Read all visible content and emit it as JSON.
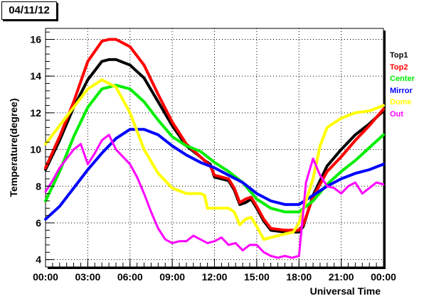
{
  "header": {
    "date_label": "04/11/12"
  },
  "chart_data": {
    "type": "line",
    "title": "04/11/12",
    "xlabel": "Universal Time",
    "ylabel": "Temperature(degree)",
    "xlim": [
      0,
      24
    ],
    "ylim": [
      3.6,
      16.6
    ],
    "x_ticks": [
      {
        "value": 0,
        "label": "00:00"
      },
      {
        "value": 3,
        "label": "03:00"
      },
      {
        "value": 6,
        "label": "06:00"
      },
      {
        "value": 9,
        "label": "09:00"
      },
      {
        "value": 12,
        "label": "12:00"
      },
      {
        "value": 15,
        "label": "15:00"
      },
      {
        "value": 18,
        "label": "18:00"
      },
      {
        "value": 21,
        "label": "21:00"
      },
      {
        "value": 24,
        "label": "00:00"
      }
    ],
    "y_ticks": [
      {
        "value": 4,
        "label": "4"
      },
      {
        "value": 6,
        "label": "6"
      },
      {
        "value": 8,
        "label": "8"
      },
      {
        "value": 10,
        "label": "10"
      },
      {
        "value": 12,
        "label": "12"
      },
      {
        "value": 14,
        "label": "14"
      },
      {
        "value": 16,
        "label": "16"
      }
    ],
    "grid": true,
    "legend_position": "right",
    "series": [
      {
        "name": "Top1",
        "color": "#000000",
        "x": [
          0,
          1,
          2,
          3,
          4,
          4.5,
          5,
          6,
          7,
          8,
          9,
          10,
          11,
          11.3,
          11.7,
          12,
          13,
          13.4,
          13.8,
          14.2,
          14.6,
          15,
          15.5,
          16,
          17,
          18,
          18.3,
          19,
          20,
          21,
          22,
          23,
          24
        ],
        "y": [
          8.9,
          10.5,
          12.3,
          13.8,
          14.8,
          14.9,
          14.9,
          14.6,
          13.9,
          12.6,
          11.3,
          10.2,
          9.6,
          9.4,
          9.2,
          8.5,
          8.3,
          7.8,
          7.0,
          7.1,
          7.3,
          6.8,
          6.1,
          5.6,
          5.5,
          5.5,
          5.8,
          7.5,
          9.1,
          10.0,
          10.8,
          11.4,
          12.1
        ]
      },
      {
        "name": "Top2",
        "color": "#ff0000",
        "x": [
          0,
          1,
          2,
          3,
          4,
          4.5,
          5,
          6,
          7,
          8,
          9,
          10,
          11,
          11.3,
          11.7,
          12,
          13,
          13.4,
          13.8,
          14.2,
          14.6,
          15,
          15.5,
          16,
          17,
          18,
          18.3,
          19,
          20,
          21,
          22,
          23,
          24
        ],
        "y": [
          9.0,
          10.7,
          12.6,
          14.8,
          15.9,
          16.0,
          16.0,
          15.6,
          14.6,
          13.0,
          11.5,
          10.3,
          9.6,
          9.4,
          9.1,
          8.6,
          8.4,
          7.9,
          7.1,
          7.3,
          7.4,
          6.9,
          6.2,
          5.7,
          5.6,
          5.6,
          5.9,
          7.4,
          8.8,
          9.6,
          10.5,
          11.3,
          12.2
        ]
      },
      {
        "name": "Center",
        "color": "#00ee00",
        "x": [
          0,
          1,
          2,
          3,
          4,
          5,
          6,
          7,
          8,
          9,
          10,
          11,
          12,
          13,
          14,
          15,
          16,
          17,
          18,
          19,
          20,
          21,
          22,
          23,
          24
        ],
        "y": [
          7.2,
          8.8,
          10.7,
          12.3,
          13.3,
          13.5,
          13.3,
          12.6,
          11.6,
          10.7,
          10.2,
          9.9,
          9.3,
          8.8,
          8.2,
          7.3,
          6.8,
          6.6,
          6.6,
          7.2,
          8.1,
          8.8,
          9.4,
          10.1,
          10.8
        ]
      },
      {
        "name": "Mirror",
        "color": "#0000ff",
        "x": [
          0,
          1,
          2,
          3,
          4,
          5,
          6,
          7,
          8,
          9,
          10,
          11,
          12,
          13,
          14,
          15,
          16,
          17,
          18,
          19,
          20,
          21,
          22,
          23,
          24
        ],
        "y": [
          6.2,
          6.9,
          7.9,
          8.9,
          9.8,
          10.6,
          11.1,
          11.1,
          10.8,
          10.2,
          9.7,
          9.3,
          9.0,
          8.6,
          8.2,
          7.6,
          7.2,
          7.0,
          7.0,
          7.5,
          8.0,
          8.4,
          8.7,
          8.9,
          9.2
        ]
      },
      {
        "name": "Dome",
        "color": "#ffff00",
        "x": [
          0,
          1,
          2,
          3,
          4,
          5,
          6,
          7,
          8,
          9,
          10,
          11,
          11.3,
          11.5,
          12,
          13,
          13.4,
          13.8,
          14.2,
          14.6,
          15,
          15.5,
          16,
          17,
          17.6,
          18,
          19,
          19.5,
          20,
          21,
          22,
          23,
          24
        ],
        "y": [
          10.3,
          11.3,
          12.3,
          13.3,
          13.8,
          13.4,
          12.0,
          10.0,
          8.7,
          7.9,
          7.6,
          7.6,
          7.5,
          6.8,
          6.8,
          6.8,
          6.6,
          5.9,
          6.2,
          6.3,
          5.8,
          5.1,
          5.2,
          5.4,
          5.5,
          6.0,
          8.4,
          10.2,
          11.2,
          11.7,
          12.0,
          12.1,
          12.4
        ]
      },
      {
        "name": "Out",
        "color": "#ff00ff",
        "x": [
          0,
          0.5,
          1,
          1.5,
          2,
          2.5,
          3,
          3.5,
          4,
          4.5,
          5,
          5.5,
          6,
          6.5,
          7,
          7.5,
          8,
          8.5,
          9,
          9.5,
          10,
          10.5,
          11,
          11.5,
          12,
          12.5,
          13,
          13.5,
          14,
          14.5,
          15,
          15.5,
          16,
          16.5,
          17,
          17.5,
          18,
          18.5,
          19,
          19.5,
          20,
          20.5,
          21,
          21.5,
          22,
          22.5,
          23,
          23.5,
          24
        ],
        "y": [
          7.7,
          8.3,
          9.0,
          9.5,
          10.0,
          10.3,
          9.2,
          9.8,
          10.5,
          10.8,
          10.0,
          9.6,
          9.2,
          8.5,
          7.6,
          6.6,
          5.7,
          5.1,
          4.9,
          5.0,
          5.0,
          5.3,
          5.1,
          4.9,
          5.0,
          5.2,
          4.8,
          4.9,
          4.5,
          4.8,
          4.8,
          4.4,
          4.2,
          4.1,
          4.2,
          4.1,
          4.2,
          8.2,
          9.5,
          8.6,
          8.0,
          7.9,
          7.6,
          8.0,
          8.2,
          7.6,
          7.9,
          8.2,
          8.1
        ]
      }
    ]
  }
}
